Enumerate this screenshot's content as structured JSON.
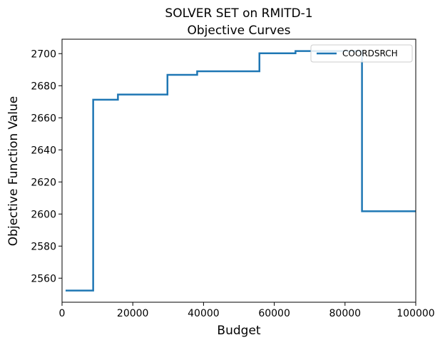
{
  "chart_data": {
    "type": "line",
    "title": "SOLVER SET on RMITD-1",
    "subtitle": "Objective Curves",
    "xlabel": "Budget",
    "ylabel": "Objective Function Value",
    "xlim": [
      0,
      100000
    ],
    "ylim": [
      2545,
      2709
    ],
    "x_ticks": [
      0,
      20000,
      40000,
      60000,
      80000,
      100000
    ],
    "y_ticks": [
      2560,
      2580,
      2600,
      2620,
      2640,
      2660,
      2680,
      2700
    ],
    "grid": false,
    "legend_position": "top-right",
    "step": "post",
    "series": [
      {
        "name": "COORDSRCH",
        "color": "#1f77b4",
        "points": [
          [
            1000,
            2552.3
          ],
          [
            8800,
            2552.3
          ],
          [
            8800,
            2671.3
          ],
          [
            15800,
            2671.3
          ],
          [
            15800,
            2674.5
          ],
          [
            29800,
            2674.5
          ],
          [
            29800,
            2686.8
          ],
          [
            38200,
            2686.8
          ],
          [
            38200,
            2689.0
          ],
          [
            55800,
            2689.0
          ],
          [
            55800,
            2700.2
          ],
          [
            66000,
            2700.2
          ],
          [
            66000,
            2701.6
          ],
          [
            84800,
            2701.6
          ],
          [
            84800,
            2601.7
          ],
          [
            100000,
            2601.7
          ]
        ]
      }
    ]
  }
}
